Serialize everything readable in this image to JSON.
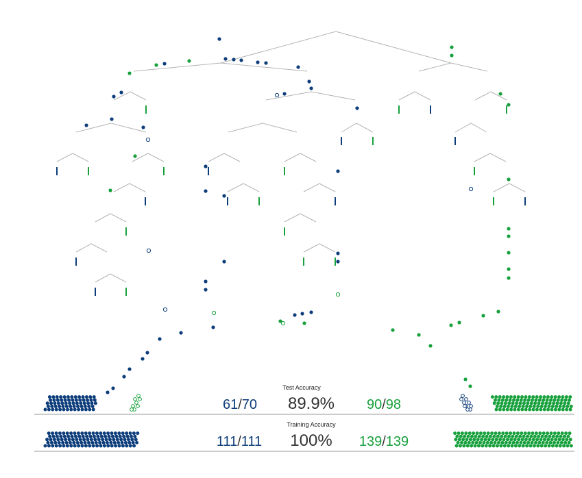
{
  "colors": {
    "blue": "#0d3d7a",
    "green": "#17a03c",
    "branch": "#b4b4b4",
    "rule": "#9a9a9a",
    "text": "#333333"
  },
  "test": {
    "label": "Test Accuracy",
    "accuracy": "89.9%",
    "left_correct": "61",
    "left_total": "70",
    "right_correct": "90",
    "right_total": "98",
    "slash": "/"
  },
  "training": {
    "label": "Training Accuracy",
    "accuracy": "100%",
    "left_correct": "111",
    "left_total": "111",
    "right_correct": "139",
    "right_total": "139",
    "slash": "/"
  }
}
